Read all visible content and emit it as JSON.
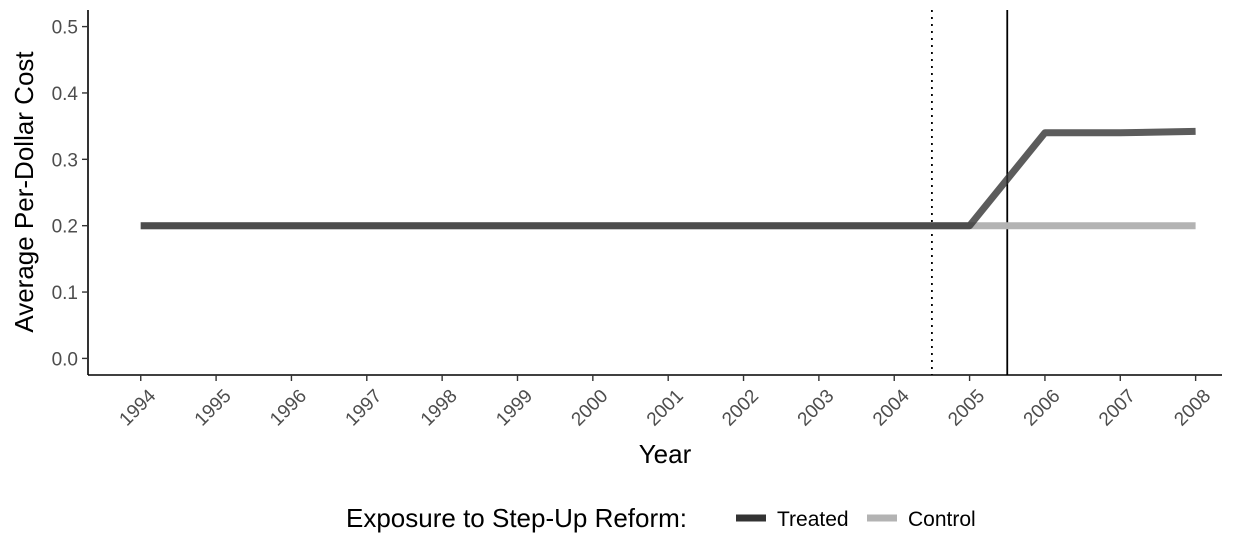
{
  "chart_data": {
    "type": "line",
    "title": "",
    "xlabel": "Year",
    "ylabel": "Average Per-Dollar Cost",
    "x": [
      1994,
      1995,
      1996,
      1997,
      1998,
      1999,
      2000,
      2001,
      2002,
      2003,
      2004,
      2005,
      2006,
      2007,
      2008
    ],
    "x_tick_labels": [
      "1994",
      "1995",
      "1996",
      "1997",
      "1998",
      "1999",
      "2000",
      "2001",
      "2002",
      "2003",
      "2004",
      "2005",
      "2006",
      "2007",
      "2008"
    ],
    "y_tick_labels": [
      "0.0",
      "0.1",
      "0.2",
      "0.3",
      "0.4",
      "0.5"
    ],
    "xlim": [
      1993.3,
      2008.35
    ],
    "ylim": [
      -0.025,
      0.525
    ],
    "grid": false,
    "series": [
      {
        "name": "Treated",
        "color": "#333333",
        "values": [
          0.2,
          0.2,
          0.2,
          0.2,
          0.2,
          0.2,
          0.2,
          0.2,
          0.2,
          0.2,
          0.2,
          0.2,
          0.34,
          0.34,
          0.342
        ]
      },
      {
        "name": "Control",
        "color": "#b3b3b3",
        "values": [
          0.2,
          0.2,
          0.2,
          0.2,
          0.2,
          0.2,
          0.2,
          0.2,
          0.2,
          0.2,
          0.2,
          0.2,
          0.2,
          0.2,
          0.2
        ]
      }
    ],
    "vlines": [
      {
        "x": 2004.5,
        "style": "dotted",
        "color": "#000000"
      },
      {
        "x": 2005.5,
        "style": "solid",
        "color": "#000000"
      }
    ],
    "legend": {
      "position": "bottom",
      "title": "Exposure to Step-Up Reform:",
      "entries": [
        "Treated",
        "Control"
      ]
    }
  }
}
